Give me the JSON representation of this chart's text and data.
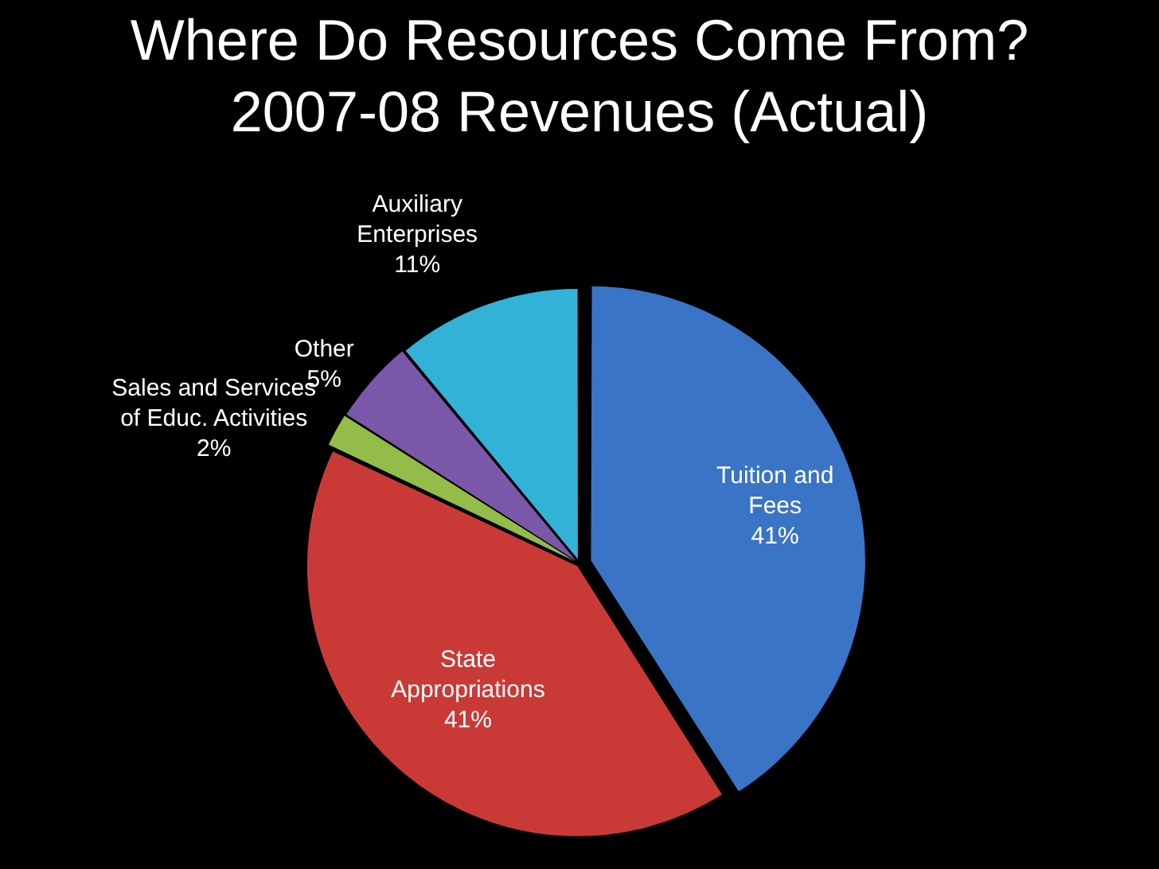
{
  "chart_data": {
    "type": "pie",
    "title": "Where Do Resources Come From?",
    "subtitle": "2007-08 Revenues (Actual)",
    "categories": [
      "Tuition and Fees",
      "State Appropriations",
      "Sales and Services of Educ. Activities",
      "Other",
      "Auxiliary Enterprises"
    ],
    "values": [
      41,
      41,
      2,
      5,
      11
    ],
    "value_labels": [
      "41%",
      "41%",
      "2%",
      "5%",
      "11%"
    ],
    "colors": [
      "#3a74c6",
      "#c93a37",
      "#93bc48",
      "#7b57a9",
      "#32b2d6"
    ],
    "legend": false
  }
}
